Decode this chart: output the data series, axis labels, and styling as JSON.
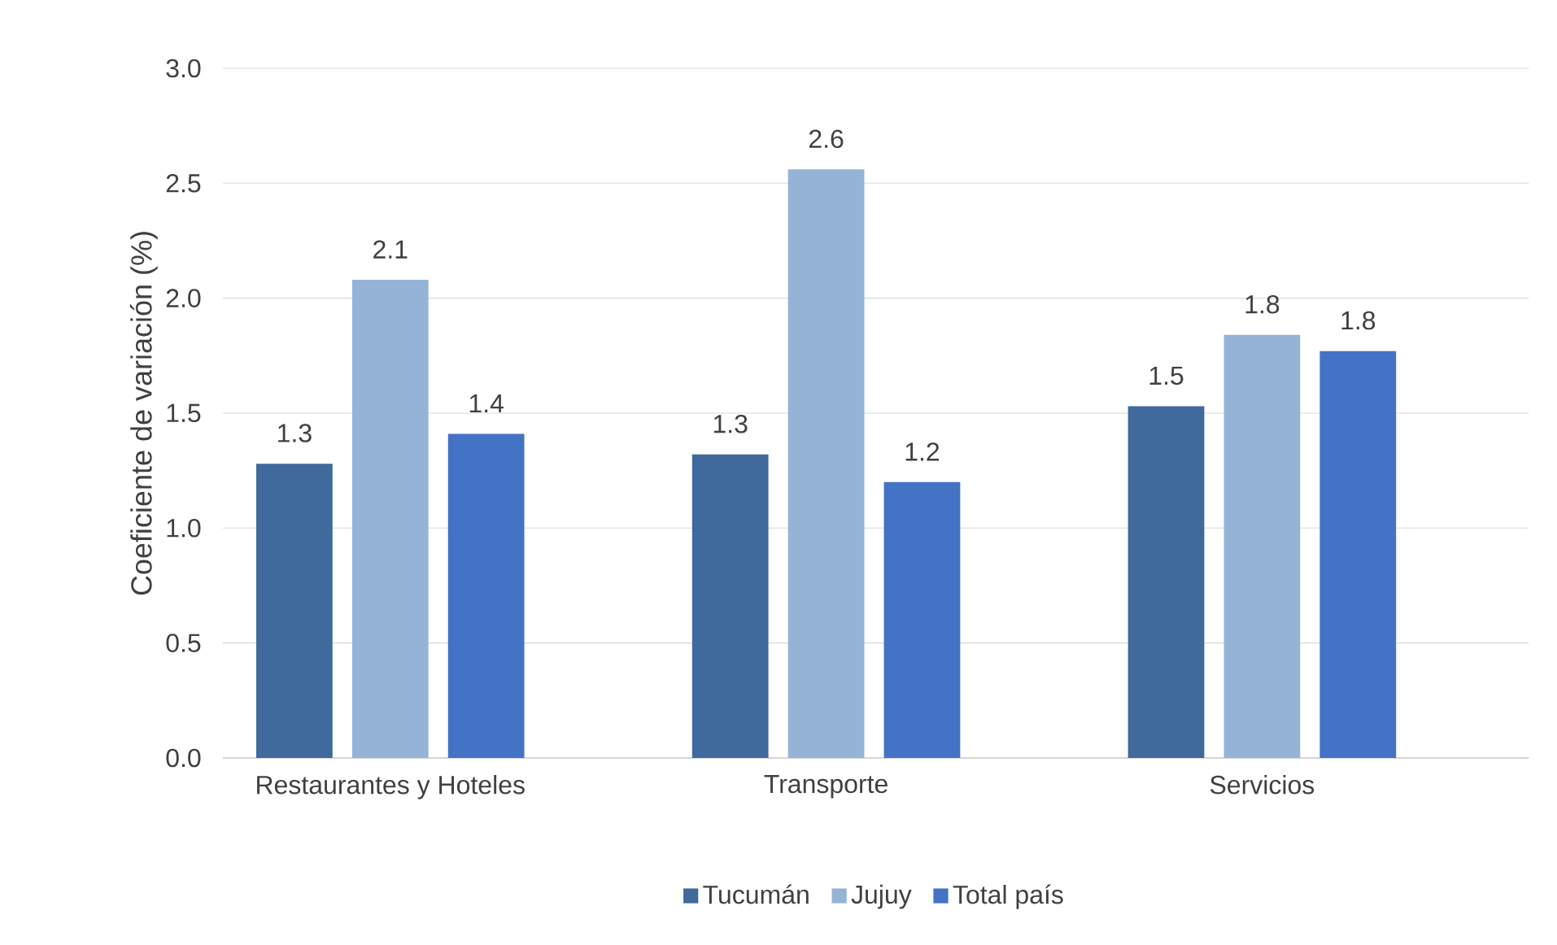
{
  "chart_data": {
    "type": "bar",
    "ylabel": "Coeficiente de variación (%)",
    "categories": [
      "Restaurantes y Hoteles",
      "Transporte",
      "Servicios"
    ],
    "series": [
      {
        "name": "Tucumán",
        "color": "#40699c",
        "values": [
          1.28,
          1.32,
          1.53
        ],
        "value_labels": [
          "1.3",
          "1.3",
          "1.5"
        ]
      },
      {
        "name": "Jujuy",
        "color": "#95b3d7",
        "values": [
          2.08,
          2.56,
          1.84
        ],
        "value_labels": [
          "2.1",
          "2.6",
          "1.8"
        ]
      },
      {
        "name": "Total país",
        "color": "#4472c4",
        "values": [
          1.41,
          1.2,
          1.77
        ],
        "value_labels": [
          "1.4",
          "1.2",
          "1.8"
        ]
      }
    ],
    "ylim": [
      0,
      3
    ],
    "yticks": [
      {
        "value": 0,
        "label": "0.0"
      },
      {
        "value": 0.5,
        "label": "0.5"
      },
      {
        "value": 1,
        "label": "1.0"
      },
      {
        "value": 1.5,
        "label": "1.5"
      },
      {
        "value": 2,
        "label": "2.0"
      },
      {
        "value": 2.5,
        "label": "2.5"
      },
      {
        "value": 3,
        "label": "3.0"
      }
    ],
    "grid": "y",
    "legend": "bottom"
  }
}
